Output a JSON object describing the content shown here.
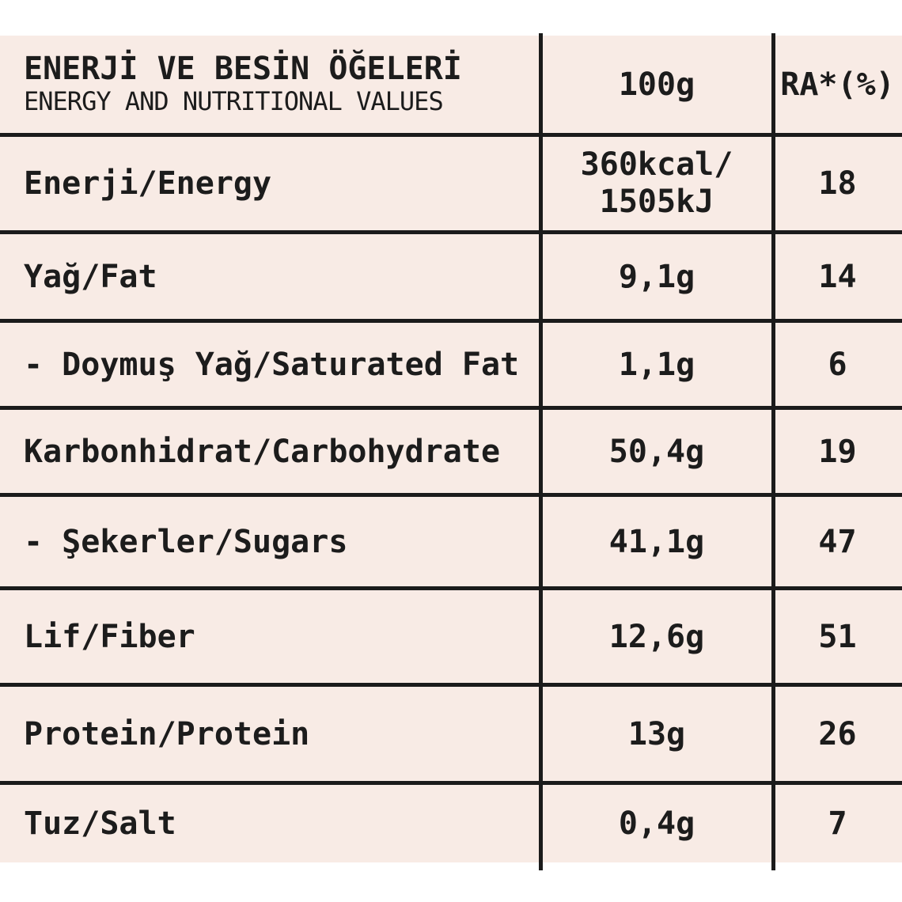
{
  "colors": {
    "table_background": "#f8ebe5",
    "line_color": "#1b1b1b",
    "text_color": "#1c1c1c",
    "page_background": "#ffffff"
  },
  "table": {
    "header": {
      "title_tr": "ENERJİ VE BESİN ÖĞELERİ",
      "title_en": "ENERGY AND NUTRITIONAL VALUES",
      "col_amount": "100g",
      "col_ra": "RA*(%)"
    },
    "rows": [
      {
        "label": "Enerji/Energy",
        "amount": "360kcal/",
        "amount2": "1505kJ",
        "ra": "18"
      },
      {
        "label": "Yağ/Fat",
        "amount": "9,1g",
        "ra": "14"
      },
      {
        "label": "- Doymuş Yağ/Saturated Fat",
        "amount": "1,1g",
        "ra": "6"
      },
      {
        "label": "Karbonhidrat/Carbohydrate",
        "amount": "50,4g",
        "ra": "19"
      },
      {
        "label": "- Şekerler/Sugars",
        "amount": "41,1g",
        "ra": "47"
      },
      {
        "label": "Lif/Fiber",
        "amount": "12,6g",
        "ra": "51"
      },
      {
        "label": "Protein/Protein",
        "amount": "13g",
        "ra": "26"
      },
      {
        "label": "Tuz/Salt",
        "amount": "0,4g",
        "ra": "7"
      }
    ]
  }
}
